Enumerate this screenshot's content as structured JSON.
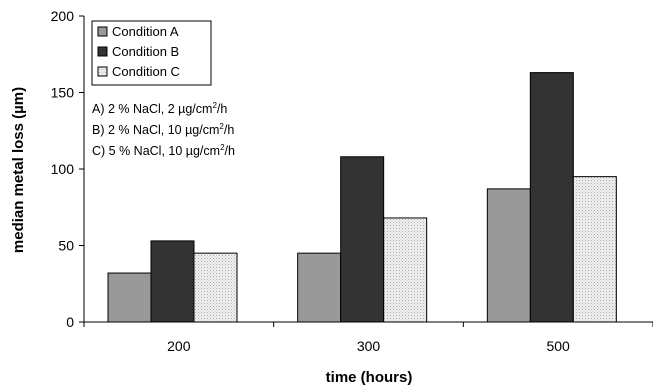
{
  "chart_data": {
    "type": "bar",
    "categories": [
      "200",
      "300",
      "500"
    ],
    "series": [
      {
        "name": "Condition A",
        "values": [
          32,
          45,
          87
        ],
        "color": "#999999",
        "pattern": "solid"
      },
      {
        "name": "Condition B",
        "values": [
          53,
          108,
          163
        ],
        "color": "#333333",
        "pattern": "solid"
      },
      {
        "name": "Condition C",
        "values": [
          45,
          68,
          95
        ],
        "color": "#e6e6e6",
        "pattern": "dots"
      }
    ],
    "title": "",
    "xlabel": "time (hours)",
    "ylabel": "median metal loss (µm)",
    "ylim": [
      0,
      200
    ],
    "yticks": [
      "0",
      "50",
      "100",
      "150",
      "200"
    ],
    "grid": false,
    "legend_placement": "top-left",
    "annotations": [
      {
        "id": "a",
        "prefix": "A) 2 % NaCl, 2 ",
        "mu": "µ",
        "unit": "g/cm",
        "sup": "2",
        "suffix": "/h"
      },
      {
        "id": "b",
        "prefix": "B) 2 % NaCl, 10 ",
        "mu": "µ",
        "unit": "g/cm",
        "sup": "2",
        "suffix": "/h"
      },
      {
        "id": "c",
        "prefix": "C) 5 % NaCl, 10 ",
        "mu": "µ",
        "unit": "g/cm",
        "sup": "2",
        "suffix": "/h"
      }
    ]
  }
}
